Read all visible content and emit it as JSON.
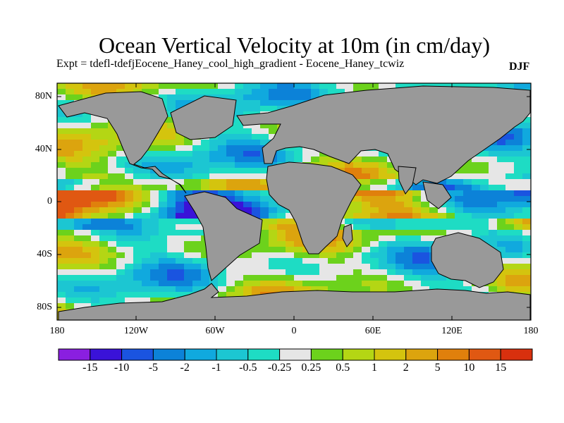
{
  "title": "Ocean Vertical Velocity at 10m (in cm/day)",
  "subtitle": "Expt = tdefl-tdefjEocene_Haney_cool_high_gradient - Eocene_Haney_tcwiz",
  "season": "DJF",
  "map": {
    "lat_ticks": [
      "80N",
      "40N",
      "0",
      "40S",
      "80S"
    ],
    "lon_ticks": [
      "180",
      "120W",
      "60W",
      "0",
      "60E",
      "120E",
      "180"
    ],
    "land_color": "#999999",
    "lat_range": [
      -90,
      90
    ],
    "lon_range": [
      -180,
      180
    ]
  },
  "colorbar": {
    "colors": [
      "#8a1fe0",
      "#3a12d8",
      "#1a54e0",
      "#0c82d8",
      "#10a9de",
      "#1cc6d2",
      "#1edcc4",
      "#e6e6e6",
      "#6cd21c",
      "#b4d614",
      "#d4c40e",
      "#dca40e",
      "#e0800c",
      "#e05812",
      "#d8300e"
    ],
    "labels": [
      "-15",
      "-10",
      "-5",
      "-2",
      "-1",
      "-0.5",
      "-0.25",
      "0.25",
      "0.5",
      "1",
      "2",
      "5",
      "10",
      "15"
    ]
  }
}
